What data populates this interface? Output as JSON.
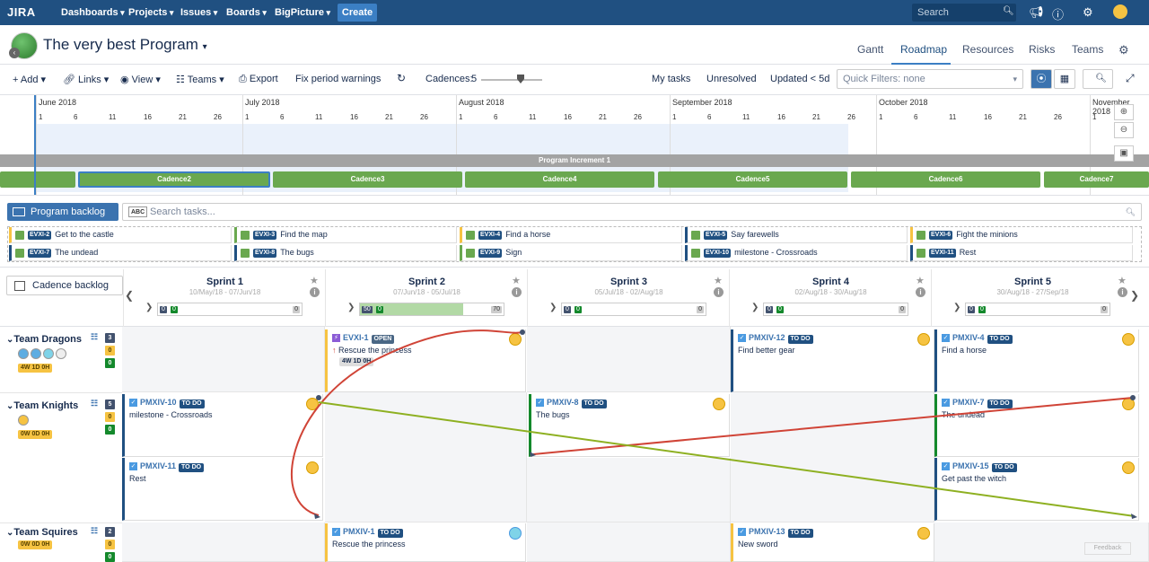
{
  "topnav": {
    "logo": "JIRA",
    "items": [
      "Dashboards",
      "Projects",
      "Issues",
      "Boards",
      "BigPicture"
    ],
    "create": "Create",
    "search_placeholder": "Search"
  },
  "header": {
    "title": "The very best Program",
    "tabs": [
      "Gantt",
      "Roadmap",
      "Resources",
      "Risks",
      "Teams"
    ],
    "active_tab": "Roadmap"
  },
  "toolbar": {
    "add": "+ Add",
    "links": "Links",
    "view": "View",
    "teams": "Teams",
    "export": "Export",
    "fix": "Fix period warnings",
    "cadences_label": "Cadences:",
    "cadences_value": "5",
    "cadences_level": 0.6,
    "my_tasks": "My tasks",
    "unresolved": "Unresolved",
    "updated": "Updated < 5d",
    "quick_filters": "Quick Filters: none"
  },
  "timeline": {
    "months": [
      "June 2018",
      "July 2018",
      "August 2018",
      "September 2018",
      "October 2018",
      "November 2018"
    ],
    "june_days": [
      "1",
      "6",
      "11",
      "16",
      "21",
      "26"
    ],
    "july_days": [
      "1",
      "6",
      "11",
      "16",
      "21",
      "26"
    ],
    "aug_days": [
      "1",
      "6",
      "11",
      "16",
      "21",
      "26"
    ],
    "sep_days": [
      "1",
      "6",
      "11",
      "16",
      "21",
      "26"
    ],
    "oct_days": [
      "1",
      "6",
      "11",
      "16",
      "21",
      "26"
    ],
    "nov_days": [
      "1"
    ],
    "program_increment": "Program Increment 1",
    "cadences": [
      "Cadence2",
      "Cadence3",
      "Cadence4",
      "Cadence5",
      "Cadence6",
      "Cadence7"
    ]
  },
  "backlog": {
    "button": "Program backlog",
    "abc": "ABC",
    "search_placeholder": "Search tasks...",
    "items": [
      {
        "key": "EVXI-2",
        "summary": "Get to the castle"
      },
      {
        "key": "EVXI-3",
        "summary": "Find the map"
      },
      {
        "key": "EVXI-4",
        "summary": "Find a horse"
      },
      {
        "key": "EVXI-5",
        "summary": "Say farewells"
      },
      {
        "key": "EVXI-6",
        "summary": "Fight the minions"
      },
      {
        "key": "EVXI-7",
        "summary": "The undead"
      },
      {
        "key": "EVXI-8",
        "summary": "The bugs"
      },
      {
        "key": "EVXI-9",
        "summary": "Sign"
      },
      {
        "key": "EVXI-10",
        "summary": "milestone - Crossroads"
      },
      {
        "key": "EVXI-11",
        "summary": "Rest"
      }
    ]
  },
  "sprints": {
    "cadence_backlog": "Cadence backlog",
    "items": [
      {
        "name": "Sprint 1",
        "dates": "10/May/18 - 07/Jun/18",
        "a": "0",
        "b": "0",
        "total": "0",
        "progress": 0
      },
      {
        "name": "Sprint 2",
        "dates": "07/Jun/18 - 05/Jul/18",
        "a": "50",
        "b": "0",
        "total": "70",
        "progress": 0.71
      },
      {
        "name": "Sprint 3",
        "dates": "05/Jul/18 - 02/Aug/18",
        "a": "0",
        "b": "0",
        "total": "0",
        "progress": 0
      },
      {
        "name": "Sprint 4",
        "dates": "02/Aug/18 - 30/Aug/18",
        "a": "0",
        "b": "0",
        "total": "0",
        "progress": 0
      },
      {
        "name": "Sprint 5",
        "dates": "30/Aug/18 - 27/Sep/18",
        "a": "0",
        "b": "0",
        "total": "0",
        "progress": 0
      }
    ]
  },
  "teams": [
    {
      "name": "Team Dragons",
      "people": "3",
      "c1": "0",
      "c2": "0",
      "cap": "4W 1D 0H"
    },
    {
      "name": "Team Knights",
      "people": "5",
      "c1": "0",
      "c2": "0",
      "cap": "0W 0D 0H"
    },
    {
      "name": "Team Squires",
      "people": "2",
      "c1": "0",
      "c2": "0",
      "cap": "0W 0D 0H"
    }
  ],
  "cards": {
    "evxi1": {
      "key": "EVXI-1",
      "status": "OPEN",
      "summary": "Rescue the princess",
      "duration": "4W 1D 0H"
    },
    "pmxiv12": {
      "key": "PMXIV-12",
      "status": "TO DO",
      "summary": "Find better gear"
    },
    "pmxiv4": {
      "key": "PMXIV-4",
      "status": "TO DO",
      "summary": "Find a horse"
    },
    "pmxiv10": {
      "key": "PMXIV-10",
      "status": "TO DO",
      "summary": "milestone - Crossroads"
    },
    "pmxiv8": {
      "key": "PMXIV-8",
      "status": "TO DO",
      "summary": "The bugs"
    },
    "pmxiv7": {
      "key": "PMXIV-7",
      "status": "TO DO",
      "summary": "The undead"
    },
    "pmxiv11": {
      "key": "PMXIV-11",
      "status": "TO DO",
      "summary": "Rest"
    },
    "pmxiv15": {
      "key": "PMXIV-15",
      "status": "TO DO",
      "summary": "Get past the witch"
    },
    "pmxiv1": {
      "key": "PMXIV-1",
      "status": "TO DO",
      "summary": "Rescue the princess"
    },
    "pmxiv13": {
      "key": "PMXIV-13",
      "status": "TO DO",
      "summary": "New sword"
    }
  },
  "feedback": "Feedback",
  "colors": {
    "nav": "#205081",
    "cadence": "#6aa84f",
    "dep_red": "#d04437",
    "dep_green": "#8eb021"
  }
}
